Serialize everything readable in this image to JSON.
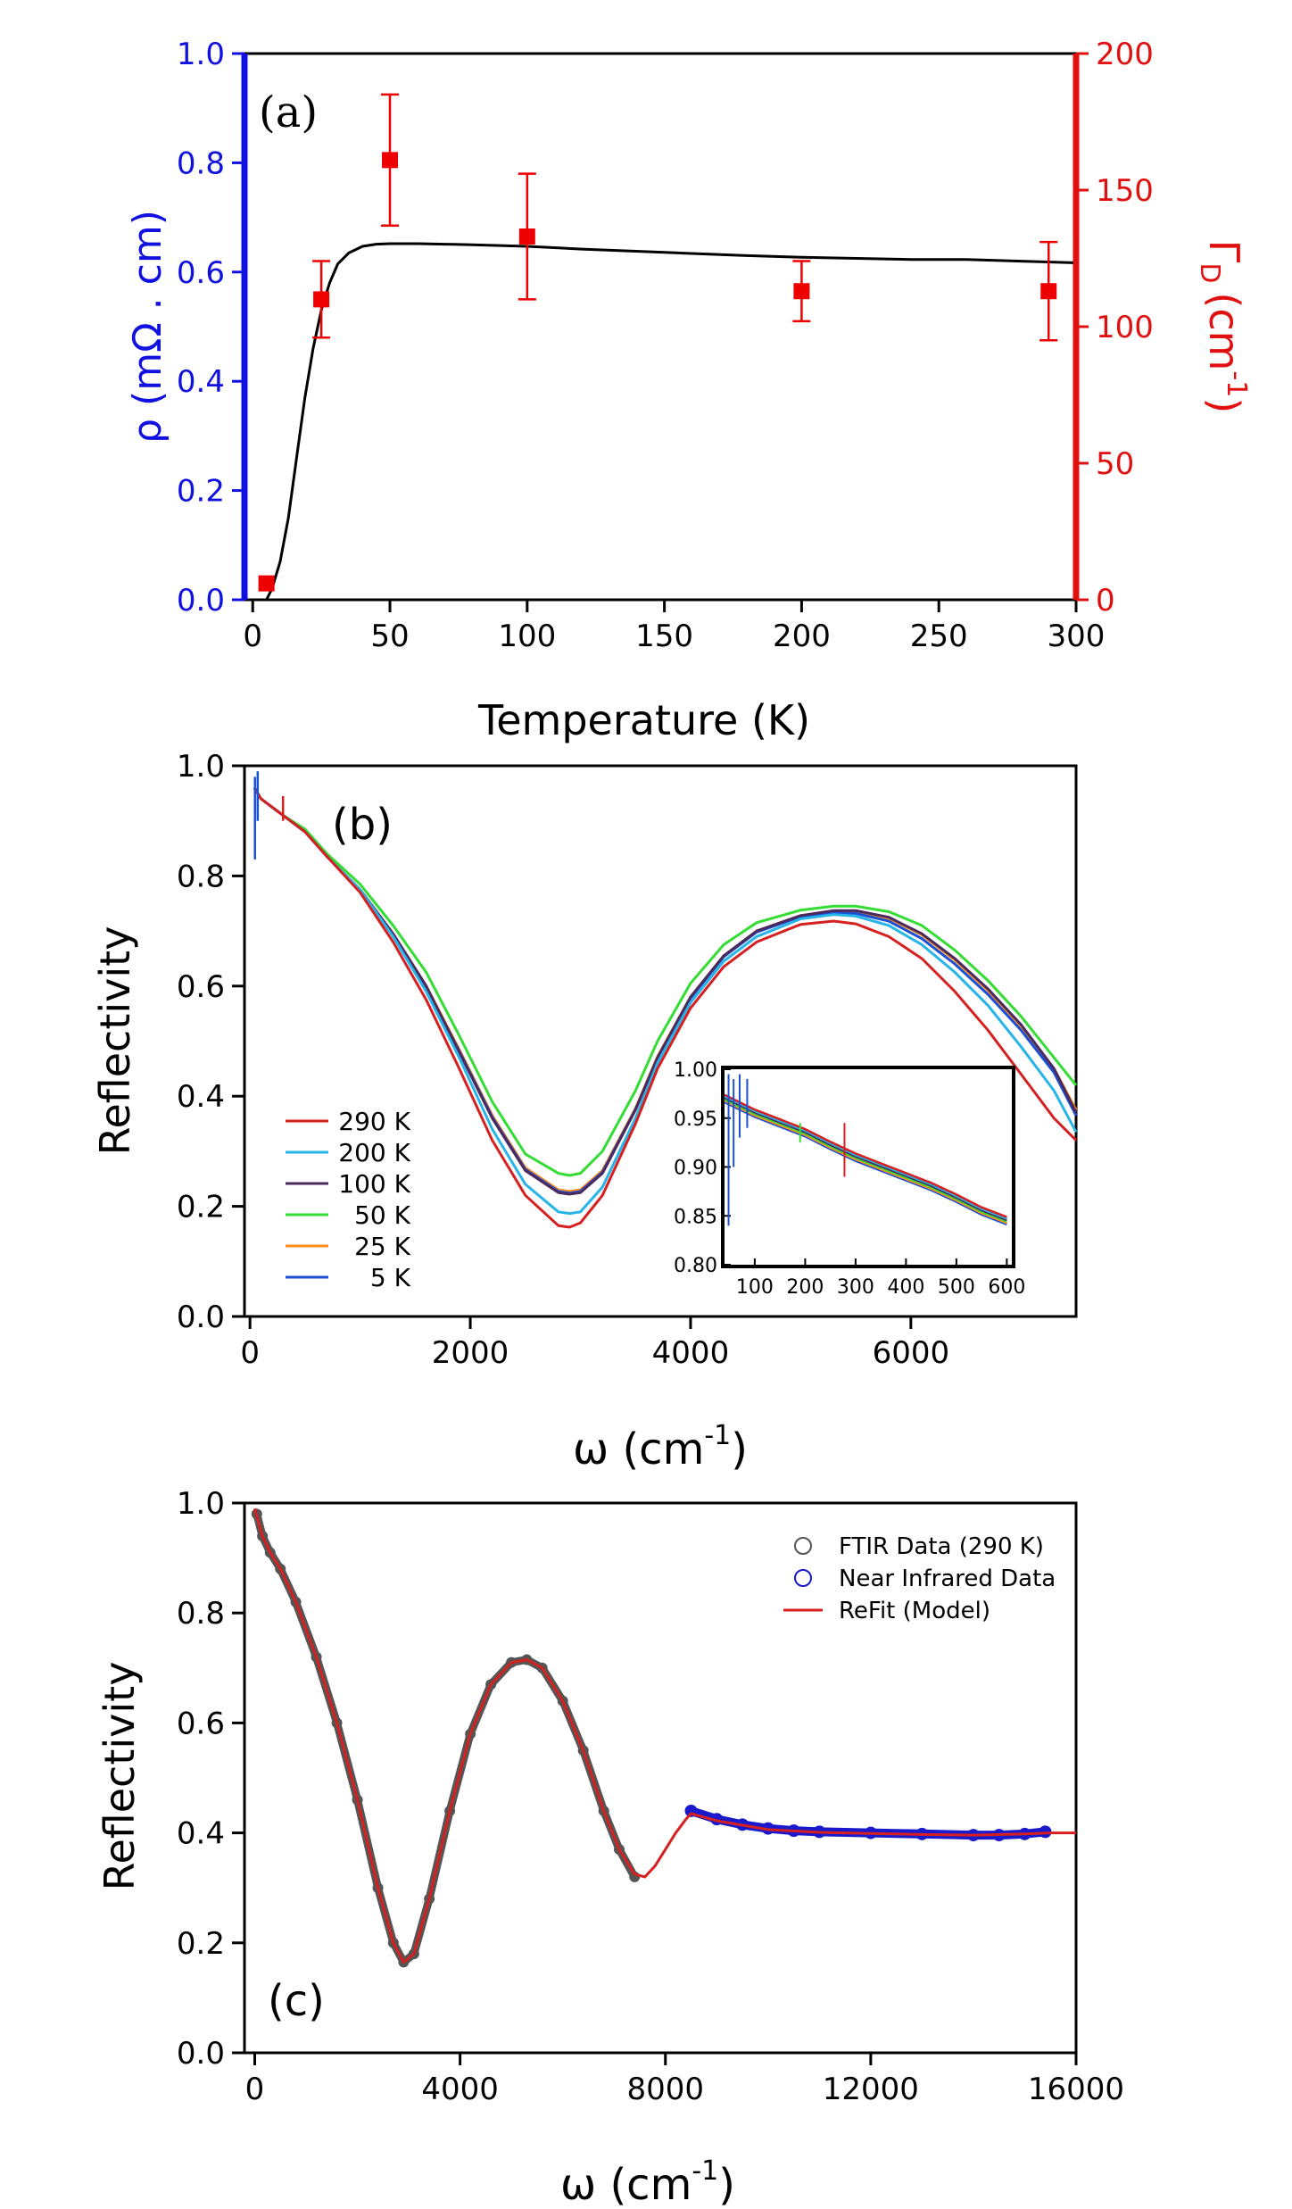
{
  "colors": {
    "blue_axis": "#1010e0",
    "red_axis": "#e01010",
    "black": "#000000",
    "c290": "#d62020",
    "c200": "#27b4e8",
    "c100": "#4a2a5e",
    "c50": "#33dd33",
    "c25": "#ff8c1a",
    "c5": "#1a4fd6",
    "nir": "#1a1acc",
    "ftir": "#555555",
    "marker": "#ee0000"
  },
  "panels": {
    "a": {
      "label": "(a)",
      "xlabel": "Temperature (K)",
      "ylabel_left": "ρ (mΩ . cm)",
      "ylabel_right_main": "Γ",
      "ylabel_right_sub": "D",
      "ylabel_right_unit": "(cm",
      "ylabel_right_sup": "-1",
      "ylabel_right_close": ")"
    },
    "b": {
      "label": "(b)",
      "xlabel": "ω (cm",
      "xlabel_sup": "-1",
      "xlabel_close": ")",
      "ylabel": "Reflectivity",
      "legend": [
        "290 K",
        "200 K",
        "100 K",
        "50 K",
        "25 K",
        "5 K"
      ]
    },
    "c": {
      "label": "(c)",
      "xlabel": "ω (cm",
      "xlabel_sup": "-1",
      "xlabel_close": ")",
      "ylabel": "Reflectivity",
      "legend": [
        "FTIR Data (290 K)",
        "Near Infrared Data",
        "ReFit (Model)"
      ]
    }
  },
  "chart_data": [
    {
      "type": "scatter",
      "panel": "(a)",
      "xlabel": "Temperature (K)",
      "ylabel": "ρ (mΩ . cm)",
      "ylabel_right": "ΓD (cm-1)",
      "xlim": [
        -3,
        300
      ],
      "ylim": [
        0,
        1.0
      ],
      "ylim_right": [
        0,
        200
      ],
      "xticks": [
        0,
        50,
        100,
        150,
        200,
        250,
        300
      ],
      "yticks": [
        0.0,
        0.2,
        0.4,
        0.6,
        0.8,
        1.0
      ],
      "yticks_right": [
        0,
        50,
        100,
        150,
        200
      ],
      "series": [
        {
          "kind": "line",
          "axis": "left",
          "x": [
            5,
            7,
            10,
            13,
            16,
            19,
            22,
            25,
            28,
            31,
            35,
            40,
            45,
            50,
            60,
            70,
            80,
            100,
            120,
            150,
            180,
            200,
            220,
            240,
            260,
            280,
            299
          ],
          "y": [
            0.0,
            0.02,
            0.07,
            0.15,
            0.26,
            0.37,
            0.46,
            0.53,
            0.58,
            0.615,
            0.635,
            0.647,
            0.651,
            0.652,
            0.652,
            0.651,
            0.65,
            0.647,
            0.642,
            0.636,
            0.63,
            0.627,
            0.625,
            0.623,
            0.623,
            0.62,
            0.617
          ]
        },
        {
          "kind": "scatter",
          "axis": "right",
          "x": [
            5,
            25,
            50,
            100,
            200,
            290
          ],
          "y": [
            6,
            110,
            161,
            133,
            113,
            113
          ],
          "err": [
            0,
            14,
            24,
            23,
            11,
            18
          ]
        }
      ]
    },
    {
      "type": "line",
      "panel": "(b)",
      "xlabel": "ω (cm-1)",
      "ylabel": "Reflectivity",
      "xlim": [
        -50,
        7500
      ],
      "ylim": [
        0,
        1.0
      ],
      "xticks": [
        0,
        2000,
        4000,
        6000
      ],
      "yticks": [
        0.0,
        0.2,
        0.4,
        0.6,
        0.8,
        1.0
      ],
      "x": [
        40,
        100,
        200,
        300,
        500,
        700,
        1000,
        1300,
        1600,
        1900,
        2200,
        2500,
        2800,
        2900,
        3000,
        3200,
        3500,
        3700,
        4000,
        4300,
        4600,
        5000,
        5300,
        5500,
        5800,
        6100,
        6400,
        6700,
        7000,
        7300,
        7500
      ],
      "series": [
        {
          "name": "290 K",
          "values": [
            0.96,
            0.94,
            0.925,
            0.91,
            0.88,
            0.835,
            0.77,
            0.68,
            0.575,
            0.45,
            0.32,
            0.22,
            0.165,
            0.162,
            0.17,
            0.22,
            0.35,
            0.45,
            0.56,
            0.635,
            0.68,
            0.712,
            0.718,
            0.713,
            0.69,
            0.65,
            0.59,
            0.52,
            0.44,
            0.36,
            0.32
          ]
        },
        {
          "name": "200 K",
          "values": [
            0.96,
            0.94,
            0.925,
            0.91,
            0.88,
            0.835,
            0.775,
            0.69,
            0.59,
            0.47,
            0.34,
            0.24,
            0.19,
            0.187,
            0.19,
            0.235,
            0.36,
            0.46,
            0.57,
            0.645,
            0.69,
            0.722,
            0.73,
            0.727,
            0.71,
            0.675,
            0.625,
            0.565,
            0.49,
            0.41,
            0.335
          ]
        },
        {
          "name": "100 K",
          "values": [
            0.96,
            0.94,
            0.925,
            0.91,
            0.88,
            0.835,
            0.775,
            0.695,
            0.6,
            0.48,
            0.36,
            0.265,
            0.225,
            0.222,
            0.225,
            0.26,
            0.375,
            0.47,
            0.58,
            0.655,
            0.7,
            0.728,
            0.737,
            0.737,
            0.725,
            0.695,
            0.65,
            0.595,
            0.53,
            0.45,
            0.37
          ]
        },
        {
          "name": "50 K",
          "values": [
            0.96,
            0.94,
            0.925,
            0.91,
            0.885,
            0.84,
            0.785,
            0.71,
            0.625,
            0.51,
            0.39,
            0.295,
            0.26,
            0.256,
            0.26,
            0.3,
            0.41,
            0.5,
            0.605,
            0.675,
            0.715,
            0.738,
            0.745,
            0.745,
            0.735,
            0.71,
            0.665,
            0.61,
            0.545,
            0.47,
            0.42
          ]
        },
        {
          "name": "25 K",
          "values": [
            0.96,
            0.94,
            0.925,
            0.91,
            0.88,
            0.835,
            0.775,
            0.695,
            0.6,
            0.485,
            0.365,
            0.27,
            0.23,
            0.227,
            0.23,
            0.265,
            0.378,
            0.472,
            0.58,
            0.655,
            0.7,
            0.728,
            0.736,
            0.735,
            0.723,
            0.693,
            0.647,
            0.592,
            0.527,
            0.45,
            0.375
          ]
        },
        {
          "name": "5 K",
          "values": [
            0.96,
            0.94,
            0.925,
            0.91,
            0.88,
            0.835,
            0.775,
            0.693,
            0.598,
            0.482,
            0.362,
            0.267,
            0.227,
            0.224,
            0.227,
            0.262,
            0.376,
            0.47,
            0.578,
            0.653,
            0.698,
            0.726,
            0.733,
            0.732,
            0.718,
            0.686,
            0.64,
            0.585,
            0.52,
            0.443,
            0.365
          ]
        }
      ],
      "inset": {
        "xlim": [
          40,
          610
        ],
        "ylim": [
          0.8,
          1.0
        ],
        "xticks": [
          100,
          200,
          300,
          400,
          500,
          600
        ],
        "yticks": [
          0.8,
          0.85,
          0.9,
          0.95,
          1.0
        ],
        "x": [
          40,
          100,
          150,
          200,
          250,
          300,
          350,
          400,
          450,
          500,
          550,
          600
        ],
        "trend": [
          0.97,
          0.955,
          0.945,
          0.935,
          0.922,
          0.91,
          0.9,
          0.89,
          0.88,
          0.868,
          0.855,
          0.845
        ]
      }
    },
    {
      "type": "scatter",
      "panel": "(c)",
      "xlabel": "ω (cm-1)",
      "ylabel": "Reflectivity",
      "xlim": [
        -200,
        16000
      ],
      "ylim": [
        0,
        1.0
      ],
      "xticks": [
        0,
        4000,
        8000,
        12000,
        16000
      ],
      "yticks": [
        0.0,
        0.2,
        0.4,
        0.6,
        0.8,
        1.0
      ],
      "series": [
        {
          "name": "FTIR Data (290 K)",
          "x": [
            40,
            150,
            300,
            500,
            800,
            1200,
            1600,
            2000,
            2400,
            2700,
            2900,
            3100,
            3400,
            3800,
            4200,
            4600,
            5000,
            5300,
            5600,
            6000,
            6400,
            6800,
            7100,
            7400
          ],
          "y": [
            0.98,
            0.94,
            0.91,
            0.88,
            0.82,
            0.72,
            0.6,
            0.46,
            0.3,
            0.2,
            0.165,
            0.18,
            0.28,
            0.44,
            0.58,
            0.67,
            0.71,
            0.715,
            0.7,
            0.64,
            0.55,
            0.44,
            0.37,
            0.32
          ]
        },
        {
          "name": "Near Infrared Data",
          "x": [
            8500,
            9000,
            9500,
            10000,
            10500,
            11000,
            12000,
            13000,
            14000,
            14500,
            15000,
            15400
          ],
          "y": [
            0.44,
            0.425,
            0.415,
            0.408,
            0.404,
            0.402,
            0.4,
            0.398,
            0.396,
            0.396,
            0.398,
            0.402
          ]
        },
        {
          "name": "ReFit (Model)",
          "x": [
            0,
            150,
            300,
            500,
            800,
            1200,
            1600,
            2000,
            2400,
            2700,
            2900,
            3100,
            3400,
            3800,
            4200,
            4600,
            5000,
            5300,
            5600,
            6000,
            6400,
            6800,
            7100,
            7400,
            7600,
            7800,
            8000,
            8200,
            8400,
            8500,
            9000,
            10000,
            11000,
            12000,
            13000,
            14000,
            15000,
            15500,
            16000
          ],
          "y": [
            0.99,
            0.94,
            0.91,
            0.88,
            0.82,
            0.72,
            0.6,
            0.46,
            0.3,
            0.2,
            0.165,
            0.18,
            0.28,
            0.44,
            0.58,
            0.67,
            0.71,
            0.715,
            0.7,
            0.64,
            0.55,
            0.44,
            0.37,
            0.325,
            0.32,
            0.34,
            0.37,
            0.4,
            0.425,
            0.435,
            0.422,
            0.406,
            0.401,
            0.399,
            0.397,
            0.396,
            0.398,
            0.4,
            0.4
          ]
        }
      ]
    }
  ]
}
